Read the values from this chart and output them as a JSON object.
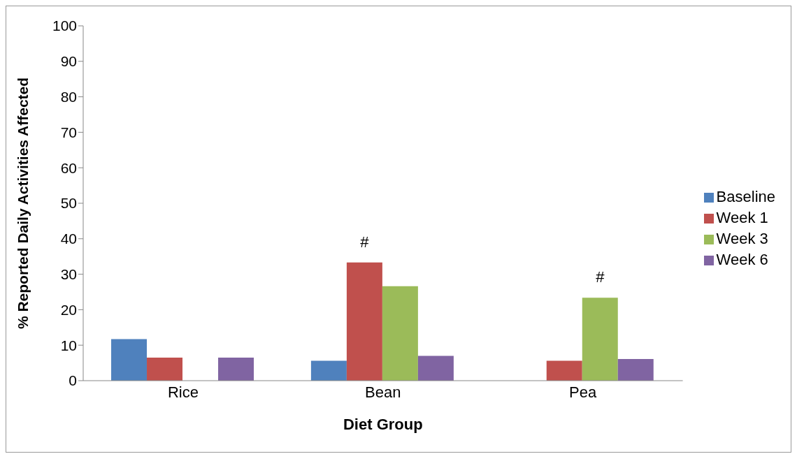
{
  "chart_data": {
    "type": "bar",
    "xlabel": "Diet Group",
    "ylabel": "% Reported Daily Activities Affected",
    "categories": [
      "Rice",
      "Bean",
      "Pea"
    ],
    "series": [
      {
        "name": "Baseline",
        "color": "#4f81bd",
        "values": [
          11.7,
          5.6,
          0
        ]
      },
      {
        "name": "Week 1",
        "color": "#c0504d",
        "values": [
          6.5,
          33.3,
          5.6
        ]
      },
      {
        "name": "Week 3",
        "color": "#9bbb59",
        "values": [
          0,
          26.6,
          23.4
        ]
      },
      {
        "name": "Week 6",
        "color": "#8064a2",
        "values": [
          6.5,
          7.0,
          6.1
        ]
      }
    ],
    "ylim": [
      0,
      100
    ],
    "yticks": [
      0,
      10,
      20,
      30,
      40,
      50,
      60,
      70,
      80,
      90,
      100
    ],
    "grid": false,
    "legend": "right",
    "annotations": [
      {
        "text": "#",
        "x": "Bean",
        "y": 33.3
      },
      {
        "text": "#",
        "x": "Pea",
        "y": 23.4
      }
    ]
  }
}
